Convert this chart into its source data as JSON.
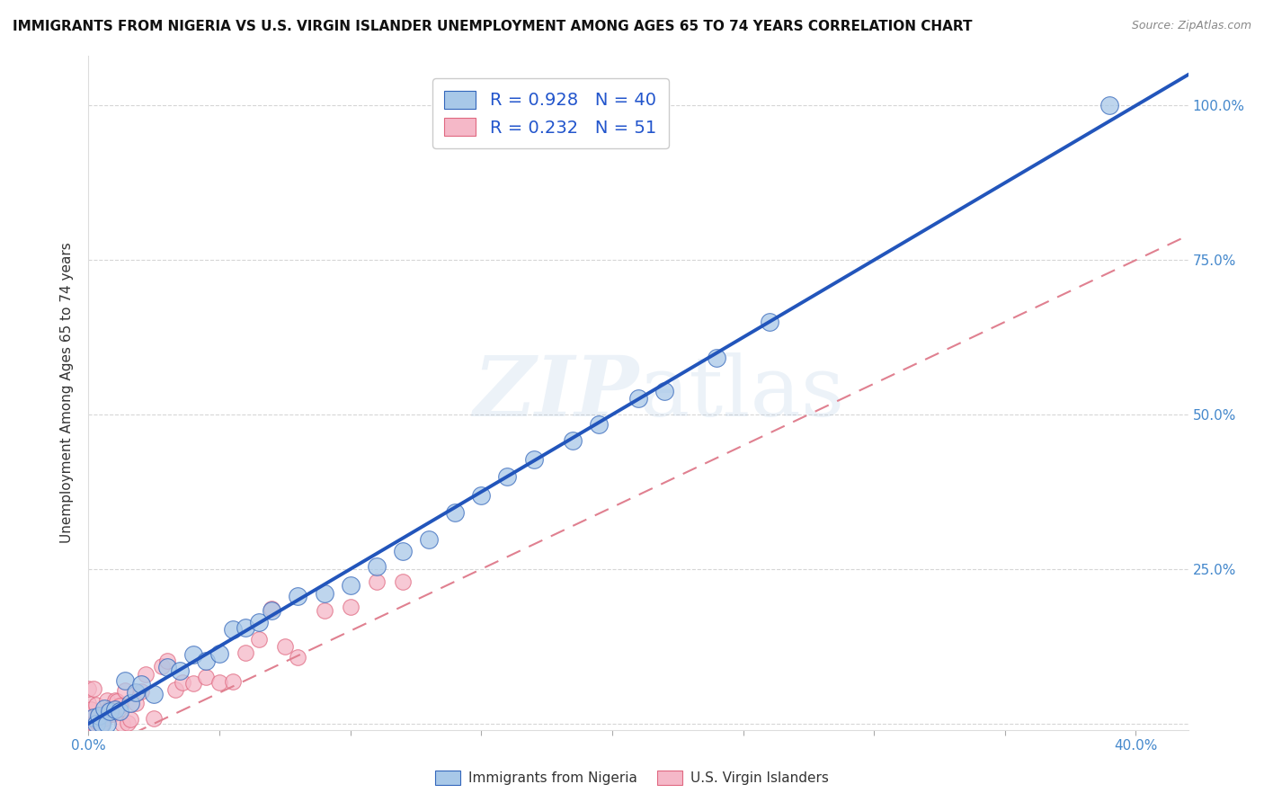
{
  "title": "IMMIGRANTS FROM NIGERIA VS U.S. VIRGIN ISLANDER UNEMPLOYMENT AMONG AGES 65 TO 74 YEARS CORRELATION CHART",
  "source": "Source: ZipAtlas.com",
  "ylabel": "Unemployment Among Ages 65 to 74 years",
  "xlim_max": 0.42,
  "ylim_max": 1.08,
  "x_tick_positions": [
    0.0,
    0.05,
    0.1,
    0.15,
    0.2,
    0.25,
    0.3,
    0.35,
    0.4
  ],
  "x_tick_labels": [
    "0.0%",
    "",
    "",
    "",
    "",
    "",
    "",
    "",
    "40.0%"
  ],
  "y_tick_positions": [
    0.0,
    0.25,
    0.5,
    0.75,
    1.0
  ],
  "y_tick_labels_right": [
    "",
    "25.0%",
    "50.0%",
    "75.0%",
    "100.0%"
  ],
  "grid_color": "#cccccc",
  "background_color": "#ffffff",
  "nigeria_face_color": "#a8c8e8",
  "nigeria_edge_color": "#3366bb",
  "nigeria_line_color": "#2255bb",
  "usvi_face_color": "#f5b8c8",
  "usvi_edge_color": "#e06880",
  "usvi_line_color": "#e08090",
  "watermark_text": "ZIPatlas",
  "watermark_color": "#99bbdd",
  "watermark_alpha": 0.18,
  "legend_R_nigeria": "R = 0.928",
  "legend_N_nigeria": "N = 40",
  "legend_R_usvi": "R = 0.232",
  "legend_N_usvi": "N = 51",
  "legend_text_color": "#2255cc",
  "title_fontsize": 11,
  "axis_label_fontsize": 11,
  "tick_fontsize": 11,
  "legend_fontsize": 14,
  "tick_color": "#4488cc",
  "nigeria_line_slope": 2.5,
  "nigeria_line_intercept": 0.0,
  "usvi_line_slope": 2.0,
  "usvi_line_intercept": -0.05,
  "scatter_size_nigeria": 200,
  "scatter_size_usvi": 160
}
